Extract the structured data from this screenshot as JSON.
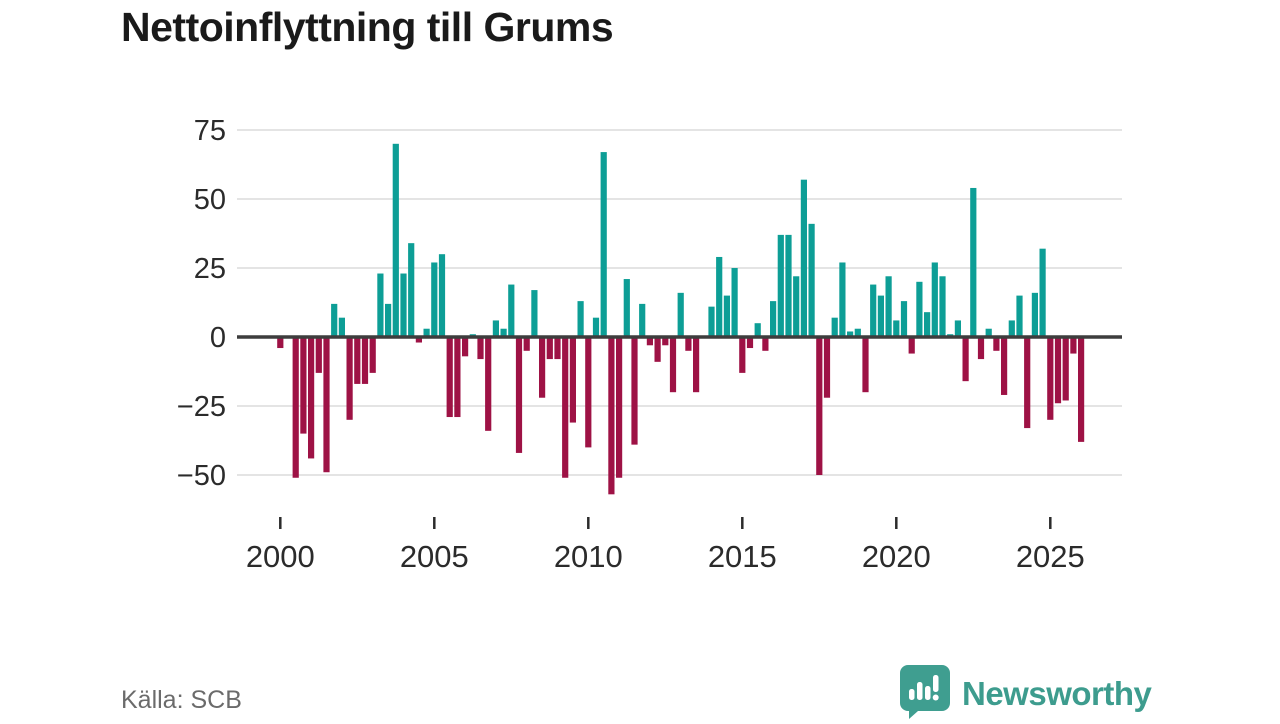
{
  "title": "Nettoinflyttning till Grums",
  "source": "Källa: SCB",
  "branding": {
    "name": "Newsworthy",
    "color": "#3d9c8e"
  },
  "colors": {
    "positive": "#0d9e96",
    "negative": "#9e1245",
    "zero_line": "#3d3d3d",
    "gridline": "#e4e4e4",
    "axis_text": "#2b2b2b"
  },
  "chart_data": {
    "type": "bar",
    "title": "Nettoinflyttning till Grums",
    "xlabel": "",
    "ylabel": "",
    "frequency": "quarterly",
    "y_ticks": [
      75,
      50,
      25,
      0,
      -25,
      -50
    ],
    "ylim": [
      -62,
      80
    ],
    "grid": "horizontal",
    "legend": "none",
    "x_tick_years": [
      2000,
      2005,
      2010,
      2015,
      2020,
      2025
    ],
    "x": [
      "2000K1",
      "2000K2",
      "2000K3",
      "2000K4",
      "2001K1",
      "2001K2",
      "2001K3",
      "2001K4",
      "2002K1",
      "2002K2",
      "2002K3",
      "2002K4",
      "2003K1",
      "2003K2",
      "2003K3",
      "2003K4",
      "2004K1",
      "2004K2",
      "2004K3",
      "2004K4",
      "2005K1",
      "2005K2",
      "2005K3",
      "2005K4",
      "2006K1",
      "2006K2",
      "2006K3",
      "2006K4",
      "2007K1",
      "2007K2",
      "2007K3",
      "2007K4",
      "2008K1",
      "2008K2",
      "2008K3",
      "2008K4",
      "2009K1",
      "2009K2",
      "2009K3",
      "2009K4",
      "2010K1",
      "2010K2",
      "2010K3",
      "2010K4",
      "2011K1",
      "2011K2",
      "2011K3",
      "2011K4",
      "2012K1",
      "2012K2",
      "2012K3",
      "2012K4",
      "2013K1",
      "2013K2",
      "2013K3",
      "2013K4",
      "2014K1",
      "2014K2",
      "2014K3",
      "2014K4",
      "2015K1",
      "2015K2",
      "2015K3",
      "2015K4",
      "2016K1",
      "2016K2",
      "2016K3",
      "2016K4",
      "2017K1",
      "2017K2",
      "2017K3",
      "2017K4",
      "2018K1",
      "2018K2",
      "2018K3",
      "2018K4",
      "2019K1",
      "2019K2",
      "2019K3",
      "2019K4",
      "2020K1",
      "2020K2",
      "2020K3",
      "2020K4",
      "2021K1",
      "2021K2",
      "2021K3",
      "2021K4",
      "2022K1",
      "2022K2",
      "2022K3",
      "2022K4",
      "2023K1",
      "2023K2",
      "2023K3",
      "2023K4",
      "2024K1",
      "2024K2",
      "2024K3",
      "2024K4",
      "2025K1",
      "2025K2",
      "2025K3",
      "2025K4",
      "2026K1"
    ],
    "series": [
      {
        "name": "Nettoinflyttning",
        "values": [
          -4,
          0,
          -51,
          -35,
          -44,
          -13,
          -49,
          12,
          7,
          -30,
          -17,
          -17,
          -13,
          23,
          12,
          70,
          23,
          34,
          -2,
          3,
          27,
          30,
          -29,
          -29,
          -7,
          1,
          -8,
          -34,
          6,
          3,
          19,
          -42,
          -5,
          17,
          -22,
          -8,
          -8,
          -51,
          -31,
          13,
          -40,
          7,
          67,
          -57,
          -51,
          21,
          -39,
          12,
          -3,
          -9,
          -3,
          -20,
          16,
          -5,
          -20,
          0,
          11,
          29,
          15,
          25,
          -13,
          -4,
          5,
          -5,
          13,
          37,
          37,
          22,
          57,
          41,
          -50,
          -22,
          7,
          27,
          2,
          3,
          -20,
          19,
          15,
          22,
          6,
          13,
          -6,
          20,
          9,
          27,
          22,
          1,
          6,
          -16,
          54,
          -8,
          3,
          -5,
          -21,
          6,
          15,
          -33,
          16,
          32,
          -30,
          -24,
          -23,
          -6,
          -38
        ]
      }
    ]
  }
}
